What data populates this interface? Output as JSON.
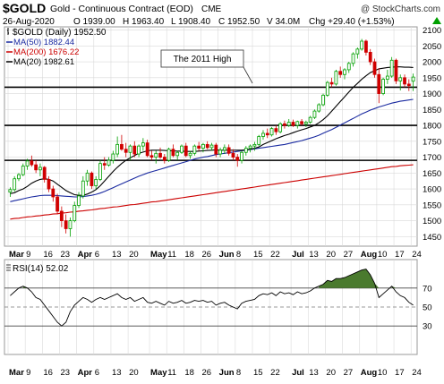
{
  "header": {
    "symbol": "$GOLD",
    "name": "Gold - Continuous Contract (EOD)",
    "exchange": "CME",
    "copyright": "@ StockCharts.com",
    "date": "26-Aug-2020",
    "open": "O 1939.00",
    "high": "H 1963.40",
    "low": "L 1908.40",
    "close": "C 1952.50",
    "volume": "V 34.0M",
    "change": "Chg +29.40 (+1.53%)",
    "change_arrow": "up-triangle-icon"
  },
  "legend": {
    "price": "$GOLD (Daily) 1952.50",
    "ma50": "MA(50) 1882.44",
    "ma200": "MA(200) 1676.22",
    "ma20": "MA(20) 1982.61"
  },
  "annotation": "The 2011 High",
  "rsi_label": "RSI(14) 52.02",
  "colors": {
    "up_candle": "#00a000",
    "down_candle": "#d00000",
    "ma50": "#1a2aa0",
    "ma200": "#cc0000",
    "ma20": "#000000",
    "rsi_fill": "#4a7a2e",
    "grid": "#d9d9d9",
    "hline": "#000000"
  },
  "chart_data": {
    "type": "candlestick",
    "ylim": [
      1420,
      2110
    ],
    "yticks": [
      1450,
      1500,
      1550,
      1600,
      1650,
      1700,
      1750,
      1800,
      1850,
      1900,
      1950,
      2000,
      2050,
      2100
    ],
    "xlabels": [
      "Mar",
      "9",
      "16",
      "23",
      "Apr",
      "6",
      "13",
      "20",
      "May",
      "11",
      "18",
      "26",
      "Jun",
      "8",
      "15",
      "22",
      "Jul",
      "13",
      "20",
      "27",
      "Aug",
      "10",
      "17",
      "24"
    ],
    "horizontal_lines": [
      1920,
      1800,
      1690
    ],
    "candles": [
      [
        1590,
        1605,
        1575,
        1598
      ],
      [
        1598,
        1640,
        1592,
        1632
      ],
      [
        1632,
        1650,
        1625,
        1645
      ],
      [
        1645,
        1680,
        1640,
        1672
      ],
      [
        1672,
        1695,
        1660,
        1688
      ],
      [
        1688,
        1705,
        1670,
        1676
      ],
      [
        1676,
        1690,
        1650,
        1660
      ],
      [
        1660,
        1680,
        1640,
        1668
      ],
      [
        1668,
        1672,
        1620,
        1630
      ],
      [
        1630,
        1640,
        1590,
        1600
      ],
      [
        1600,
        1610,
        1560,
        1575
      ],
      [
        1575,
        1585,
        1520,
        1530
      ],
      [
        1530,
        1545,
        1480,
        1500
      ],
      [
        1500,
        1520,
        1460,
        1475
      ],
      [
        1475,
        1510,
        1450,
        1500
      ],
      [
        1500,
        1560,
        1495,
        1548
      ],
      [
        1548,
        1590,
        1540,
        1578
      ],
      [
        1578,
        1640,
        1570,
        1625
      ],
      [
        1625,
        1660,
        1610,
        1650
      ],
      [
        1650,
        1655,
        1600,
        1610
      ],
      [
        1610,
        1640,
        1600,
        1630
      ],
      [
        1630,
        1690,
        1625,
        1680
      ],
      [
        1680,
        1700,
        1660,
        1675
      ],
      [
        1675,
        1700,
        1670,
        1690
      ],
      [
        1690,
        1720,
        1680,
        1710
      ],
      [
        1710,
        1765,
        1700,
        1740
      ],
      [
        1740,
        1770,
        1720,
        1725
      ],
      [
        1725,
        1745,
        1700,
        1715
      ],
      [
        1715,
        1740,
        1690,
        1735
      ],
      [
        1735,
        1750,
        1700,
        1710
      ],
      [
        1710,
        1740,
        1700,
        1735
      ],
      [
        1735,
        1760,
        1720,
        1745
      ],
      [
        1745,
        1755,
        1700,
        1705
      ],
      [
        1705,
        1720,
        1690,
        1700
      ],
      [
        1700,
        1720,
        1680,
        1712
      ],
      [
        1712,
        1730,
        1695,
        1700
      ],
      [
        1700,
        1710,
        1680,
        1690
      ],
      [
        1690,
        1730,
        1685,
        1725
      ],
      [
        1725,
        1740,
        1700,
        1705
      ],
      [
        1705,
        1720,
        1690,
        1715
      ],
      [
        1715,
        1740,
        1710,
        1735
      ],
      [
        1735,
        1745,
        1700,
        1705
      ],
      [
        1705,
        1720,
        1695,
        1712
      ],
      [
        1712,
        1740,
        1705,
        1735
      ],
      [
        1735,
        1748,
        1720,
        1728
      ],
      [
        1728,
        1745,
        1715,
        1740
      ],
      [
        1740,
        1750,
        1725,
        1730
      ],
      [
        1730,
        1745,
        1720,
        1738
      ],
      [
        1738,
        1745,
        1700,
        1710
      ],
      [
        1710,
        1730,
        1700,
        1722
      ],
      [
        1722,
        1740,
        1710,
        1730
      ],
      [
        1730,
        1740,
        1705,
        1712
      ],
      [
        1712,
        1725,
        1690,
        1700
      ],
      [
        1700,
        1710,
        1670,
        1690
      ],
      [
        1690,
        1720,
        1680,
        1715
      ],
      [
        1715,
        1735,
        1705,
        1728
      ],
      [
        1728,
        1740,
        1715,
        1735
      ],
      [
        1735,
        1748,
        1720,
        1740
      ],
      [
        1740,
        1770,
        1735,
        1765
      ],
      [
        1765,
        1785,
        1755,
        1775
      ],
      [
        1775,
        1790,
        1760,
        1770
      ],
      [
        1770,
        1795,
        1765,
        1790
      ],
      [
        1790,
        1800,
        1770,
        1780
      ],
      [
        1780,
        1810,
        1775,
        1805
      ],
      [
        1805,
        1815,
        1790,
        1800
      ],
      [
        1800,
        1820,
        1795,
        1810
      ],
      [
        1810,
        1818,
        1795,
        1800
      ],
      [
        1800,
        1815,
        1790,
        1812
      ],
      [
        1812,
        1820,
        1800,
        1805
      ],
      [
        1805,
        1815,
        1795,
        1810
      ],
      [
        1810,
        1830,
        1805,
        1825
      ],
      [
        1825,
        1850,
        1820,
        1845
      ],
      [
        1845,
        1870,
        1840,
        1865
      ],
      [
        1865,
        1900,
        1860,
        1895
      ],
      [
        1895,
        1940,
        1890,
        1935
      ],
      [
        1935,
        1950,
        1920,
        1930
      ],
      [
        1930,
        1975,
        1925,
        1970
      ],
      [
        1970,
        1985,
        1950,
        1960
      ],
      [
        1960,
        1980,
        1945,
        1975
      ],
      [
        1975,
        2000,
        1965,
        1995
      ],
      [
        1995,
        2030,
        1985,
        2025
      ],
      [
        2025,
        2045,
        2010,
        2040
      ],
      [
        2040,
        2072,
        2035,
        2065
      ],
      [
        2065,
        2070,
        2020,
        2030
      ],
      [
        2030,
        2040,
        1990,
        2000
      ],
      [
        2000,
        2010,
        1950,
        1960
      ],
      [
        1960,
        1980,
        1870,
        1900
      ],
      [
        1900,
        1950,
        1895,
        1945
      ],
      [
        1945,
        1975,
        1930,
        1955
      ],
      [
        1955,
        2015,
        1950,
        2005
      ],
      [
        2005,
        2010,
        1930,
        1940
      ],
      [
        1940,
        1960,
        1910,
        1950
      ],
      [
        1950,
        1960,
        1920,
        1930
      ],
      [
        1930,
        1945,
        1908,
        1925
      ],
      [
        1939,
        1963,
        1908,
        1952
      ]
    ],
    "ma20": [
      1585,
      1588,
      1595,
      1600,
      1608,
      1618,
      1625,
      1630,
      1632,
      1630,
      1625,
      1615,
      1605,
      1595,
      1588,
      1582,
      1580,
      1580,
      1584,
      1590,
      1598,
      1610,
      1625,
      1640,
      1655,
      1668,
      1680,
      1690,
      1698,
      1705,
      1712,
      1716,
      1720,
      1722,
      1722,
      1722,
      1721,
      1720,
      1720,
      1719,
      1719,
      1718,
      1718,
      1718,
      1719,
      1720,
      1721,
      1722,
      1723,
      1722,
      1722,
      1722,
      1722,
      1722,
      1722,
      1723,
      1725,
      1728,
      1732,
      1740,
      1746,
      1752,
      1758,
      1763,
      1768,
      1772,
      1777,
      1782,
      1786,
      1790,
      1795,
      1800,
      1808,
      1818,
      1830,
      1845,
      1860,
      1875,
      1890,
      1905,
      1920,
      1932,
      1945,
      1956,
      1966,
      1972,
      1978,
      1980,
      1982,
      1983,
      1984,
      1984,
      1983,
      1983,
      1982
    ],
    "ma50": [
      1560,
      1563,
      1566,
      1569,
      1572,
      1575,
      1577,
      1579,
      1580,
      1580,
      1580,
      1579,
      1578,
      1577,
      1576,
      1575,
      1575,
      1576,
      1578,
      1580,
      1583,
      1587,
      1592,
      1598,
      1604,
      1610,
      1616,
      1622,
      1628,
      1634,
      1640,
      1645,
      1650,
      1654,
      1658,
      1662,
      1666,
      1670,
      1674,
      1678,
      1682,
      1686,
      1690,
      1694,
      1697,
      1700,
      1702,
      1705,
      1708,
      1710,
      1712,
      1714,
      1716,
      1718,
      1720,
      1722,
      1724,
      1726,
      1728,
      1730,
      1732,
      1734,
      1736,
      1738,
      1740,
      1743,
      1746,
      1749,
      1752,
      1756,
      1760,
      1764,
      1769,
      1775,
      1781,
      1787,
      1794,
      1801,
      1808,
      1815,
      1822,
      1829,
      1836,
      1842,
      1848,
      1853,
      1858,
      1862,
      1866,
      1870,
      1873,
      1876,
      1878,
      1880,
      1882
    ],
    "ma200": [
      1505,
      1507,
      1508,
      1510,
      1512,
      1513,
      1515,
      1516,
      1518,
      1519,
      1521,
      1522,
      1524,
      1525,
      1527,
      1528,
      1530,
      1531,
      1533,
      1534,
      1536,
      1538,
      1539,
      1541,
      1543,
      1544,
      1546,
      1548,
      1550,
      1551,
      1553,
      1555,
      1557,
      1559,
      1560,
      1562,
      1564,
      1566,
      1568,
      1570,
      1572,
      1574,
      1576,
      1578,
      1580,
      1582,
      1584,
      1586,
      1588,
      1590,
      1592,
      1594,
      1596,
      1598,
      1600,
      1602,
      1604,
      1606,
      1608,
      1610,
      1612,
      1614,
      1616,
      1618,
      1620,
      1622,
      1624,
      1626,
      1628,
      1630,
      1632,
      1634,
      1636,
      1638,
      1640,
      1642,
      1644,
      1646,
      1648,
      1650,
      1652,
      1654,
      1656,
      1658,
      1660,
      1662,
      1664,
      1666,
      1668,
      1670,
      1671,
      1673,
      1674,
      1675,
      1676
    ],
    "rsi": {
      "ylim": [
        0,
        100
      ],
      "levels": [
        70,
        50,
        30
      ],
      "values": [
        62,
        66,
        70,
        72,
        70,
        66,
        60,
        58,
        52,
        46,
        40,
        34,
        30,
        34,
        45,
        52,
        56,
        60,
        58,
        55,
        58,
        60,
        58,
        60,
        62,
        64,
        60,
        58,
        60,
        56,
        58,
        60,
        55,
        54,
        56,
        54,
        52,
        56,
        54,
        55,
        57,
        54,
        55,
        57,
        56,
        57,
        55,
        56,
        52,
        54,
        55,
        52,
        50,
        48,
        54,
        56,
        57,
        58,
        62,
        64,
        63,
        65,
        62,
        66,
        64,
        65,
        63,
        66,
        64,
        65,
        67,
        70,
        72,
        74,
        78,
        77,
        80,
        80,
        81,
        83,
        85,
        87,
        89,
        90,
        84,
        75,
        60,
        64,
        68,
        72,
        66,
        62,
        60,
        55,
        52
      ]
    }
  }
}
